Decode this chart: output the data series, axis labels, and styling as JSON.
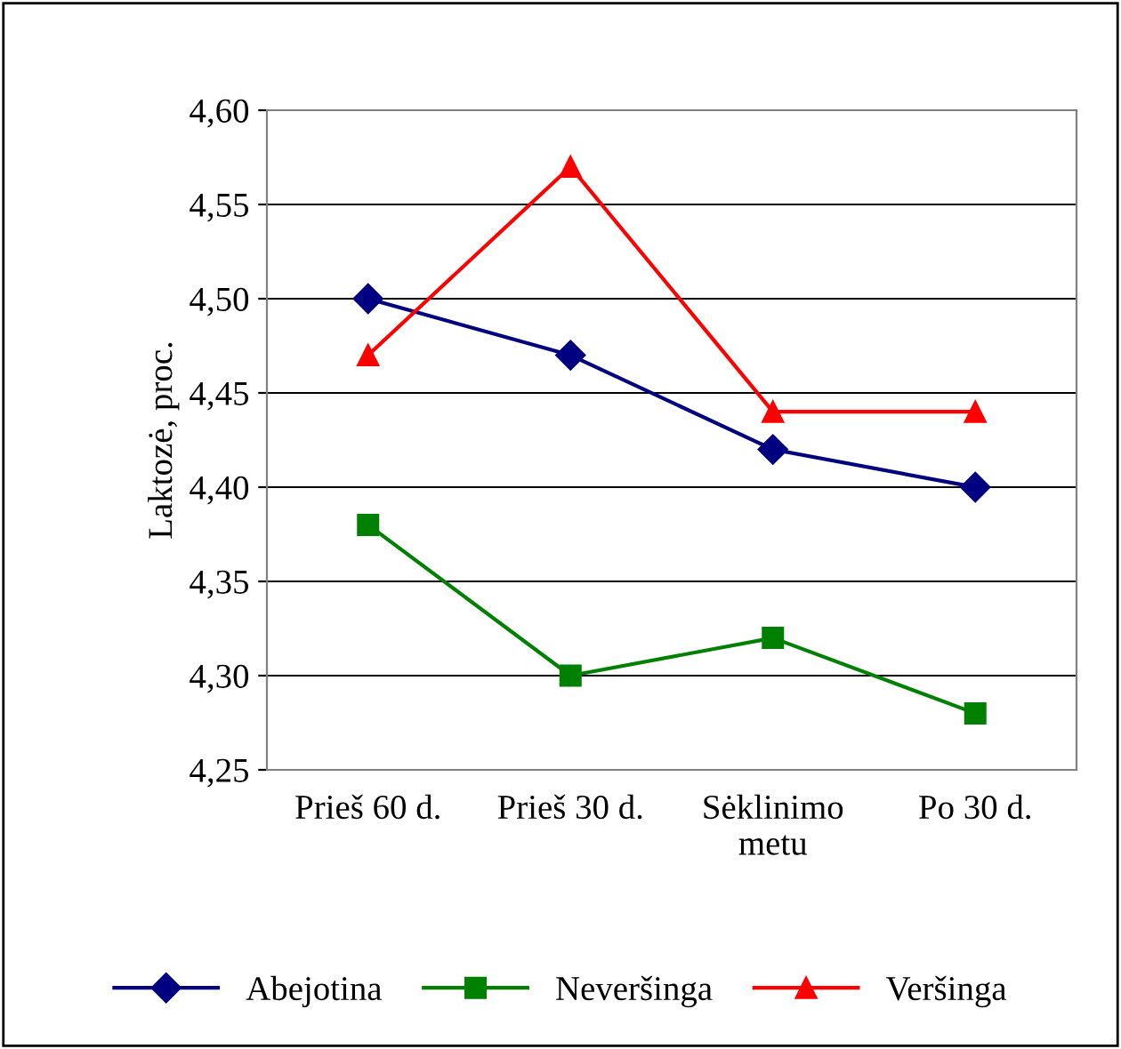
{
  "chart_data": {
    "type": "line",
    "ylabel": "Laktozė, proc.",
    "categories": [
      "Prieš 60 d.",
      "Prieš 30 d.",
      "Sėklinimo\nmetu",
      "Po 30 d."
    ],
    "series": [
      {
        "name": "Abejotina",
        "color": "#000080",
        "marker": "diamond",
        "values": [
          4.5,
          4.47,
          4.42,
          4.4
        ]
      },
      {
        "name": "Neveršinga",
        "color": "#008000",
        "marker": "square",
        "values": [
          4.38,
          4.3,
          4.32,
          4.28
        ]
      },
      {
        "name": "Veršinga",
        "color": "#ff0000",
        "marker": "triangle",
        "values": [
          4.47,
          4.57,
          4.44,
          4.44
        ]
      }
    ],
    "ylim": [
      4.25,
      4.6
    ],
    "yticks": [
      {
        "value": 4.25,
        "label": "4,25"
      },
      {
        "value": 4.3,
        "label": "4,30"
      },
      {
        "value": 4.35,
        "label": "4,35"
      },
      {
        "value": 4.4,
        "label": "4,40"
      },
      {
        "value": 4.45,
        "label": "4,45"
      },
      {
        "value": 4.5,
        "label": "4,50"
      },
      {
        "value": 4.55,
        "label": "4,55"
      },
      {
        "value": 4.6,
        "label": "4,60"
      }
    ],
    "grid": "y",
    "legend": "bottom",
    "line_style": "solid"
  }
}
